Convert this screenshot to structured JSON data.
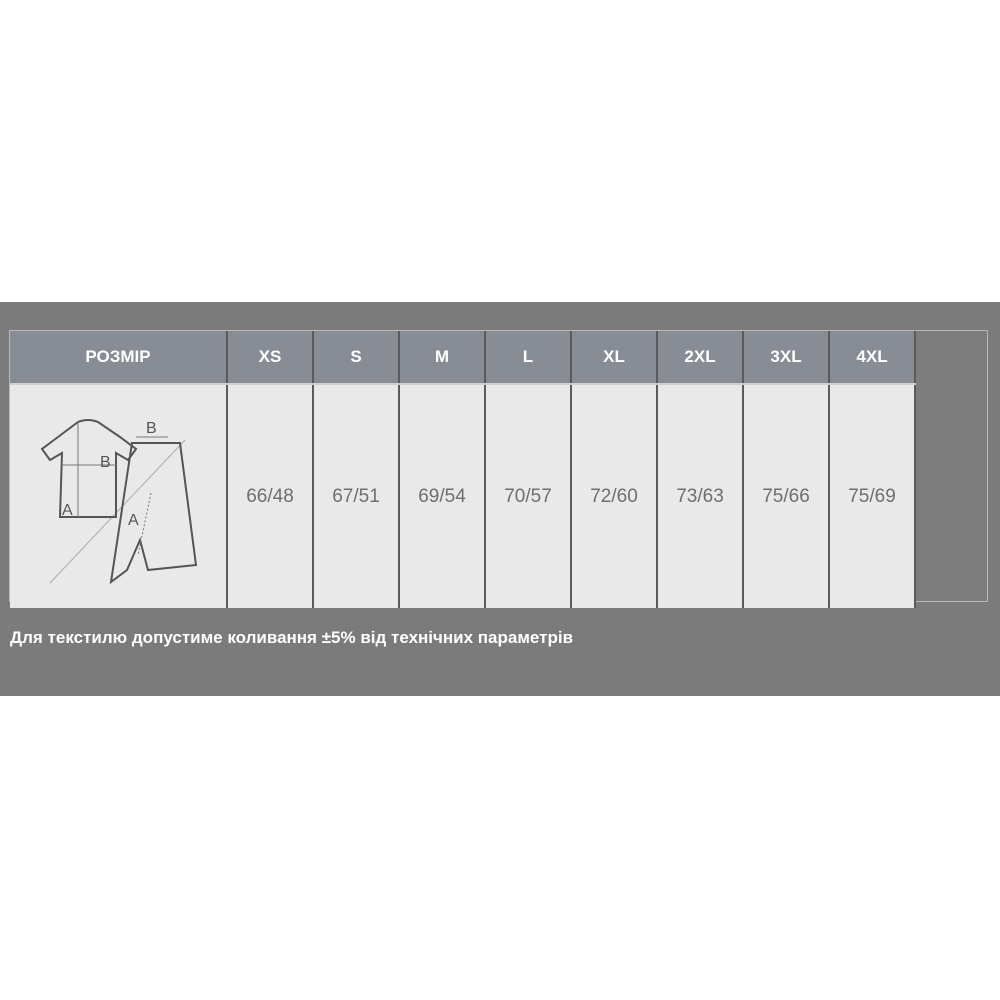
{
  "table": {
    "header_label": "РОЗМІР",
    "sizes": [
      "XS",
      "S",
      "M",
      "L",
      "XL",
      "2XL",
      "3XL",
      "4XL"
    ],
    "values": [
      "66/48",
      "67/51",
      "69/54",
      "70/57",
      "72/60",
      "73/63",
      "75/66",
      "75/69"
    ],
    "diagram": {
      "shirt_labels": [
        "A",
        "B"
      ],
      "pants_labels": [
        "A",
        "B"
      ]
    }
  },
  "note": "Для текстилю допустиме коливання ±5% від технічних параметрів",
  "colors": {
    "band": "#7b7b7b",
    "header": "#878c95",
    "cell": "#e9e9e9"
  }
}
